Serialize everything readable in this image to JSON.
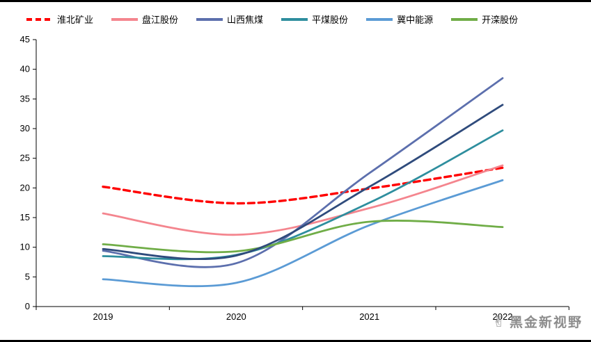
{
  "chart_data": {
    "type": "line",
    "title": "",
    "categories": [
      "2019",
      "2020",
      "2021",
      "2022"
    ],
    "y_axis": {
      "min": 0,
      "max": 45,
      "step": 5,
      "ticks": [
        "0",
        "5",
        "10",
        "15",
        "20",
        "25",
        "30",
        "35",
        "40",
        "45"
      ]
    },
    "grid": false,
    "legend_position": "top",
    "series": [
      {
        "name": "淮北矿业",
        "color": "#FF0000",
        "dash": true,
        "in_legend": true,
        "values": [
          20.2,
          17.4,
          19.9,
          23.4
        ]
      },
      {
        "name": "盘江股份",
        "color": "#F4858E",
        "dash": false,
        "in_legend": true,
        "values": [
          15.7,
          12.1,
          16.6,
          23.8
        ]
      },
      {
        "name": "山西焦煤",
        "color": "#5C6FAD",
        "dash": false,
        "in_legend": true,
        "values": [
          9.4,
          7.3,
          22.5,
          38.5
        ]
      },
      {
        "name": "平煤股份",
        "color": "#2E8E9E",
        "dash": false,
        "in_legend": true,
        "values": [
          8.5,
          8.7,
          17.5,
          29.7
        ]
      },
      {
        "name": "冀中能源",
        "color": "#5B9BD5",
        "dash": false,
        "in_legend": true,
        "values": [
          4.6,
          4.0,
          13.7,
          21.3
        ]
      },
      {
        "name": "开滦股份",
        "color": "#70AD47",
        "dash": false,
        "in_legend": true,
        "values": [
          10.5,
          9.3,
          14.3,
          13.4
        ]
      },
      {
        "name": "",
        "color": "#2F4B7C",
        "dash": false,
        "in_legend": false,
        "values": [
          9.7,
          8.6,
          20.2,
          34.0
        ]
      }
    ]
  },
  "watermark": {
    "text": "黑金新视野"
  }
}
